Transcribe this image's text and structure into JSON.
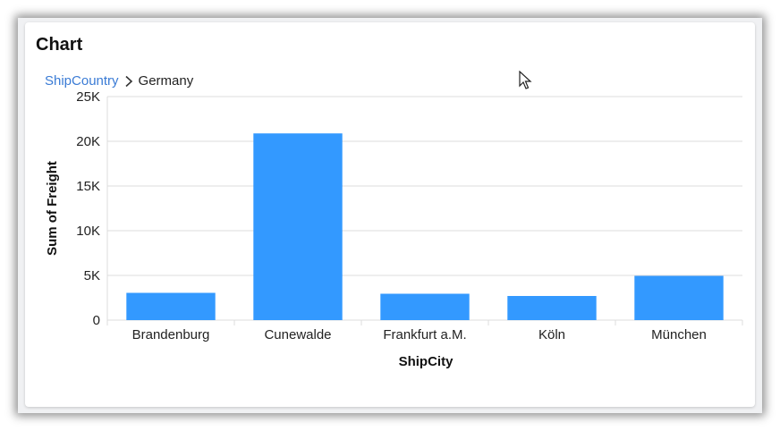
{
  "card": {
    "title": "Chart"
  },
  "breadcrumb": {
    "root": "ShipCountry",
    "current": "Germany",
    "separator_icon": "chevron-right-icon"
  },
  "colors": {
    "bar": "#3399ff",
    "grid": "#dcdcdc",
    "link": "#3a7bd5"
  },
  "chart_data": {
    "type": "bar",
    "xlabel": "ShipCity",
    "ylabel": "Sum of Freight",
    "categories": [
      "Brandenburg",
      "Cunewalde",
      "Frankfurt a.M.",
      "Köln",
      "München"
    ],
    "values": [
      3050,
      20880,
      2950,
      2700,
      4950
    ],
    "ylim": [
      0,
      25000
    ],
    "yticks": [
      0,
      5000,
      10000,
      15000,
      20000,
      25000
    ],
    "ytick_labels": [
      "0",
      "5K",
      "10K",
      "15K",
      "20K",
      "25K"
    ],
    "grid": true,
    "legend": "none"
  }
}
